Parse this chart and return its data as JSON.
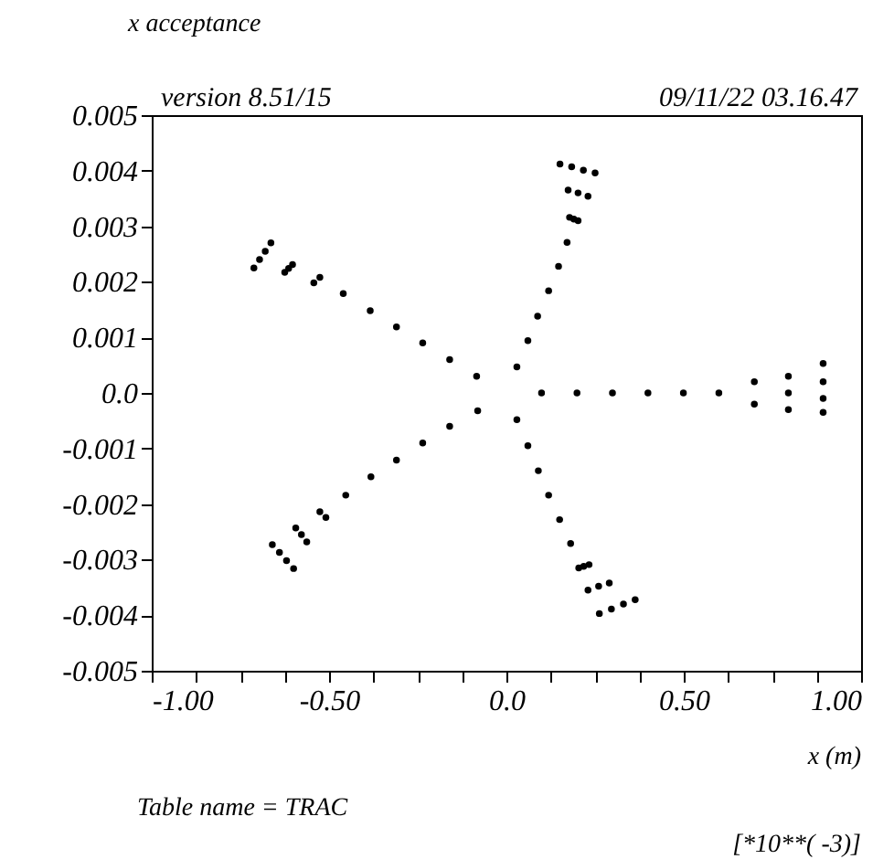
{
  "chart_data": {
    "type": "scatter",
    "title": "x acceptance",
    "xlabel": "x (m)",
    "annotations": [
      "version 8.51/15",
      "09/11/22  03.16.47",
      "Table name = TRAC",
      "[*10**( -3)]"
    ],
    "xlim": [
      -1,
      1
    ],
    "ylim": [
      -0.005,
      0.005
    ],
    "xticks": [
      {
        "value": -1,
        "label": "-1.00"
      },
      {
        "value": -0.875,
        "label": null
      },
      {
        "value": -0.75,
        "label": null
      },
      {
        "value": -0.625,
        "label": null
      },
      {
        "value": -0.5,
        "label": "-0.50"
      },
      {
        "value": -0.375,
        "label": null
      },
      {
        "value": -0.25,
        "label": null
      },
      {
        "value": -0.125,
        "label": null
      },
      {
        "value": 0,
        "label": "0.0"
      },
      {
        "value": 0.125,
        "label": null
      },
      {
        "value": 0.25,
        "label": null
      },
      {
        "value": 0.375,
        "label": null
      },
      {
        "value": 0.5,
        "label": "0.50"
      },
      {
        "value": 0.625,
        "label": null
      },
      {
        "value": 0.75,
        "label": null
      },
      {
        "value": 0.875,
        "label": null
      },
      {
        "value": 1,
        "label": "1.00"
      }
    ],
    "yticks": [
      -0.005,
      -0.004,
      -0.003,
      -0.002,
      -0.001,
      {
        "value": 0,
        "label": "0.0"
      },
      0.001,
      0.002,
      0.003,
      0.004,
      0.005
    ],
    "grid": false,
    "marker": "circle",
    "series": [
      {
        "color": "#000000",
        "x": [
          -0.712,
          -0.696,
          -0.68,
          -0.664,
          -0.625,
          -0.614,
          -0.603,
          -0.543,
          -0.526,
          -0.46,
          -0.384,
          -0.31,
          -0.236,
          -0.16,
          -0.084,
          -0.66,
          -0.64,
          -0.62,
          -0.6,
          -0.594,
          -0.578,
          -0.563,
          -0.526,
          -0.509,
          -0.453,
          -0.382,
          -0.31,
          -0.236,
          -0.16,
          -0.081,
          0.0295,
          0.0605,
          0.088,
          0.119,
          0.147,
          0.171,
          0.178,
          0.19,
          0.202,
          0.174,
          0.202,
          0.23,
          0.151,
          0.184,
          0.217,
          0.25,
          0.0295,
          0.0605,
          0.09,
          0.119,
          0.15,
          0.181,
          0.204,
          0.218,
          0.233,
          0.23,
          0.26,
          0.29,
          0.262,
          0.296,
          0.33,
          0.363,
          0.099,
          0.199,
          0.299,
          0.399,
          0.499,
          0.599,
          0.699,
          0.699,
          0.795,
          0.795,
          0.795,
          0.893,
          0.893,
          0.893,
          0.893
        ],
        "values": [
          0.00225,
          0.0024,
          0.00255,
          0.0027,
          0.00217,
          0.00224,
          0.00231,
          0.00198,
          0.00208,
          0.00179,
          0.00148,
          0.00119,
          0.0009,
          0.0006,
          0.0003,
          -0.00273,
          -0.00287,
          -0.00302,
          -0.00316,
          -0.00243,
          -0.00255,
          -0.00268,
          -0.00214,
          -0.00224,
          -0.00184,
          -0.00151,
          -0.00121,
          -0.0009,
          -0.0006,
          -0.00032,
          0.00047,
          0.00094,
          0.00138,
          0.00184,
          0.00228,
          0.00271,
          0.00316,
          0.00313,
          0.0031,
          0.00365,
          0.0036,
          0.00354,
          0.00412,
          0.00407,
          0.00401,
          0.00396,
          -0.00048,
          -0.00095,
          -0.0014,
          -0.00184,
          -0.00228,
          -0.00271,
          -0.00315,
          -0.00312,
          -0.00309,
          -0.00355,
          -0.00348,
          -0.00342,
          -0.00397,
          -0.00389,
          -0.0038,
          -0.00372,
          0,
          0,
          0,
          0,
          0,
          0,
          0.0002,
          -0.0002,
          0.0003,
          0,
          -0.0003,
          0.00053,
          0.0002,
          -0.0001,
          -0.00035
        ]
      }
    ]
  }
}
